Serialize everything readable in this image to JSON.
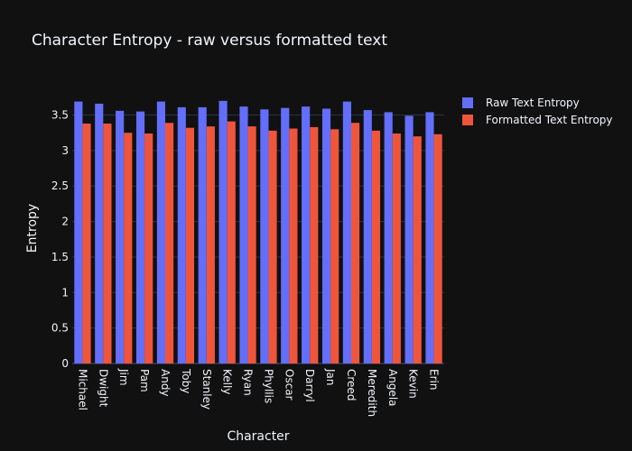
{
  "chart_data": {
    "type": "bar",
    "title": "Character Entropy - raw versus formatted text",
    "xlabel": "Character",
    "ylabel": "Entropy",
    "ylim": [
      0,
      3.85
    ],
    "yticks": [
      0,
      0.5,
      1,
      1.5,
      2,
      2.5,
      3,
      3.5
    ],
    "ytick_labels": [
      "0",
      "0.5",
      "1",
      "1.5",
      "2",
      "2.5",
      "3",
      "3.5"
    ],
    "grid": true,
    "legend_position": "top-right",
    "categories": [
      "Michael",
      "Dwight",
      "Jim",
      "Pam",
      "Andy",
      "Toby",
      "Stanley",
      "Kelly",
      "Ryan",
      "Phyllis",
      "Oscar",
      "Darryl",
      "Jan",
      "Creed",
      "Meredith",
      "Angela",
      "Kevin",
      "Erin"
    ],
    "series": [
      {
        "name": "Raw Text Entropy",
        "color": "#636efa",
        "values": [
          3.69,
          3.66,
          3.56,
          3.55,
          3.69,
          3.61,
          3.61,
          3.7,
          3.62,
          3.58,
          3.6,
          3.62,
          3.59,
          3.69,
          3.57,
          3.54,
          3.49,
          3.54
        ]
      },
      {
        "name": "Formatted Text Entropy",
        "color": "#ef553b",
        "values": [
          3.38,
          3.38,
          3.25,
          3.24,
          3.39,
          3.32,
          3.34,
          3.41,
          3.34,
          3.28,
          3.31,
          3.33,
          3.3,
          3.39,
          3.28,
          3.24,
          3.2,
          3.23
        ]
      }
    ]
  },
  "colors": {
    "background": "#111111",
    "grid": "#283442",
    "text": "#f2f5fa"
  }
}
